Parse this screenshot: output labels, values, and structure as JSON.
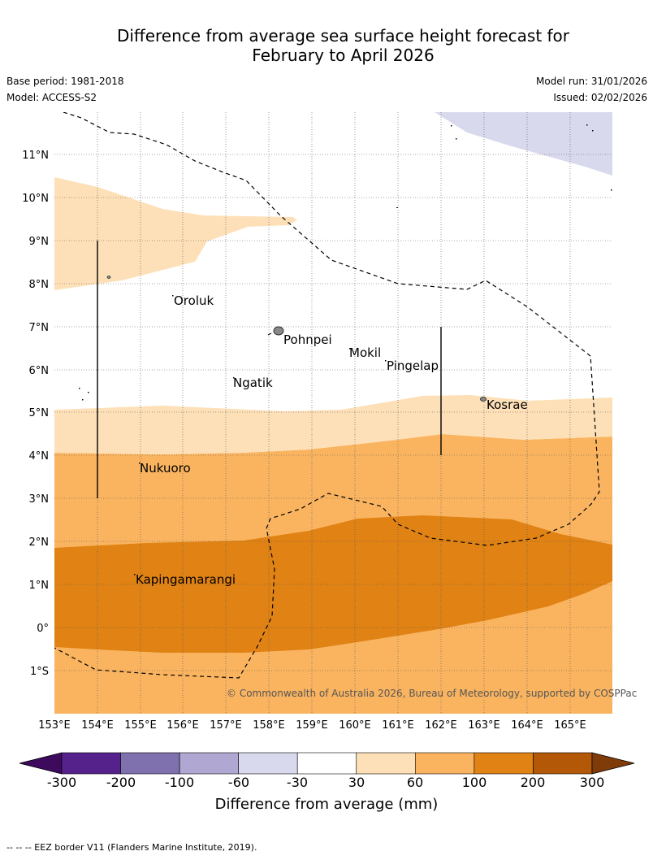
{
  "title": {
    "line1": "Difference from average sea surface height forecast for",
    "line2": "February to April 2026"
  },
  "meta": {
    "base_period": "Base period: 1981-2018",
    "model": "Model: ACCESS-S2",
    "model_run": "Model run: 31/01/2026",
    "issued": "Issued: 02/02/2026"
  },
  "map": {
    "lat_labels": [
      "11°N",
      "10°N",
      "9°N",
      "8°N",
      "7°N",
      "6°N",
      "5°N",
      "4°N",
      "3°N",
      "2°N",
      "1°N",
      "0°",
      "1°S"
    ],
    "lon_labels": [
      "153°E",
      "154°E",
      "155°E",
      "156°E",
      "157°E",
      "158°E",
      "159°E",
      "160°E",
      "161°E",
      "162°E",
      "163°E",
      "164°E",
      "165°E"
    ],
    "places": [
      "Oroluk",
      "Pohnpei",
      "Mokil",
      "Pingelap",
      "Ngatik",
      "Kosrae",
      "Nukuoro",
      "Kapingamarangi"
    ],
    "copyright": "© Commonwealth of Australia 2026, Bureau of Meteorology, supported by COSPPac"
  },
  "legend": {
    "ticks": [
      "-300",
      "-200",
      "-100",
      "-60",
      "-30",
      "30",
      "60",
      "100",
      "200",
      "300"
    ],
    "label": "Difference from average (mm)",
    "colors": [
      "#3d0a5e",
      "#55228c",
      "#7f70ae",
      "#b0a8d2",
      "#d8d9ec",
      "#ffffff",
      "#fde0b7",
      "#fab460",
      "#e08214",
      "#b35806",
      "#7f3b08"
    ]
  },
  "footnote": "--  --  -- EEZ border V11 (Flanders Marine Institute, 2019)."
}
